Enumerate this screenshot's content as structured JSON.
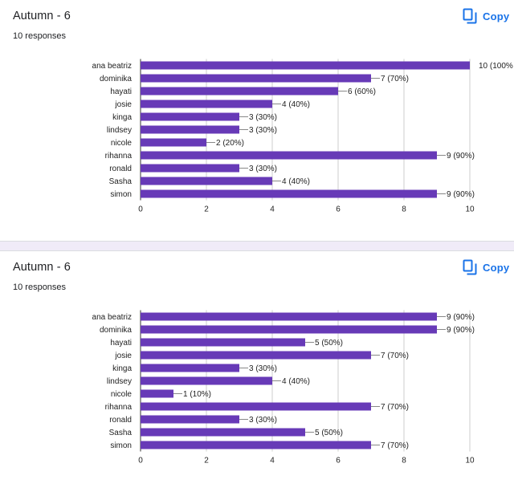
{
  "colors": {
    "bar": "#673ab7",
    "accent": "#1a73e8",
    "divider": "#f0ebf8"
  },
  "cards": [
    {
      "title": "Autumn - 6",
      "subtitle": "10 responses",
      "copy_label": "Copy",
      "copy_icon": "copy-icon"
    },
    {
      "title": "Autumn - 6",
      "subtitle": "10 responses",
      "copy_label": "Copy",
      "copy_icon": "copy-icon"
    }
  ],
  "chart_data": [
    {
      "type": "bar",
      "orientation": "horizontal",
      "categories": [
        "ana beatriz",
        "dominika",
        "hayati",
        "josie",
        "kinga",
        "lindsey",
        "nicole",
        "rihanna",
        "ronald",
        "Sasha",
        "simon"
      ],
      "values": [
        10,
        7,
        6,
        4,
        3,
        3,
        2,
        9,
        3,
        4,
        9
      ],
      "data_labels": [
        "10 (100%",
        "7 (70%)",
        "6 (60%)",
        "4 (40%)",
        "3 (30%)",
        "3 (30%)",
        "2 (20%)",
        "9 (90%)",
        "3 (30%)",
        "4 (40%)",
        "9 (90%)"
      ],
      "xlim": [
        0,
        10
      ],
      "xticks": [
        0,
        2,
        4,
        6,
        8,
        10
      ],
      "grid": true,
      "legend": "none"
    },
    {
      "type": "bar",
      "orientation": "horizontal",
      "categories": [
        "ana beatriz",
        "dominika",
        "hayati",
        "josie",
        "kinga",
        "lindsey",
        "nicole",
        "rihanna",
        "ronald",
        "Sasha",
        "simon"
      ],
      "values": [
        9,
        9,
        5,
        7,
        3,
        4,
        1,
        7,
        3,
        5,
        7
      ],
      "data_labels": [
        "9 (90%)",
        "9 (90%)",
        "5 (50%)",
        "7 (70%)",
        "3 (30%)",
        "4 (40%)",
        "1 (10%)",
        "7 (70%)",
        "3 (30%)",
        "5 (50%)",
        "7 (70%)"
      ],
      "xlim": [
        0,
        10
      ],
      "xticks": [
        0,
        2,
        4,
        6,
        8,
        10
      ],
      "grid": true,
      "legend": "none"
    }
  ]
}
